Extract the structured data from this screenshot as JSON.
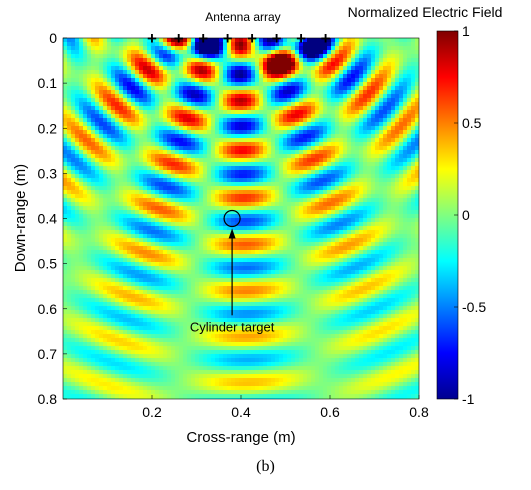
{
  "figure": {
    "caption": "(b)"
  },
  "chart_data": {
    "type": "heatmap",
    "title": "",
    "xlabel": "Cross-range (m)",
    "ylabel": "Down-range (m)",
    "xlim": [
      0,
      0.8
    ],
    "ylim": [
      0,
      0.8
    ],
    "y_reversed": true,
    "xticks": [
      "0.2",
      "0.4",
      "0.6",
      "0.8"
    ],
    "yticks": [
      "0",
      "0.1",
      "0.2",
      "0.3",
      "0.4",
      "0.5",
      "0.6",
      "0.7",
      "0.8"
    ],
    "grid": false,
    "colormap": "jet",
    "colorbar": {
      "title": "Normalized Electric Field",
      "range": [
        -1,
        1
      ],
      "ticks": [
        "1",
        "0.5",
        "0",
        "-0.5",
        "-1"
      ]
    },
    "antennas": {
      "label": "Antenna array",
      "marker": "+",
      "x": [
        0.2,
        0.26,
        0.315,
        0.37,
        0.425,
        0.48,
        0.535,
        0.59
      ],
      "y": 0
    },
    "target": {
      "label": "Cylinder target",
      "x": 0.38,
      "y": 0.4,
      "annotation_text_at": [
        0.38,
        0.65
      ]
    }
  }
}
